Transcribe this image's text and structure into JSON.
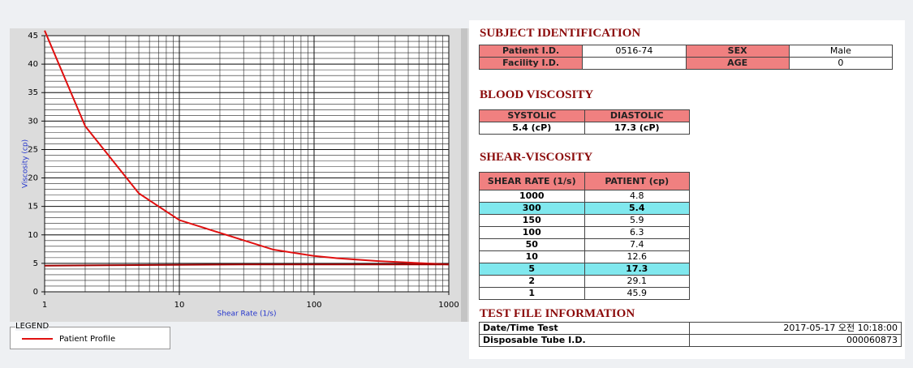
{
  "chart_data": {
    "type": "line",
    "x_label": "Shear Rate (1/s)",
    "y_label": "Viscosity (cp)",
    "xlim": [
      1,
      1000
    ],
    "xticks": [
      1,
      10,
      100,
      1000
    ],
    "xscale": "log",
    "ylim": [
      0,
      45
    ],
    "yticks": [
      0,
      5,
      10,
      15,
      20,
      25,
      30,
      35,
      40,
      45
    ],
    "grid": true,
    "legend_title": "LEGEND",
    "series": [
      {
        "name": "Patient Profile",
        "color": "#e01010",
        "x": [
          1,
          2,
          5,
          10,
          50,
          100,
          150,
          300,
          1000
        ],
        "values": [
          45.9,
          29.1,
          17.3,
          12.6,
          7.4,
          6.3,
          5.9,
          5.4,
          4.8
        ]
      },
      {
        "color": "#a00000",
        "x": [
          1,
          30,
          1000
        ],
        "values": [
          4.6,
          4.8,
          4.8
        ]
      }
    ]
  },
  "subject": {
    "title": "SUBJECT IDENTIFICATION",
    "rows": [
      [
        "Patient I.D.",
        "0516-74",
        "SEX",
        "Male"
      ],
      [
        "Facility I.D.",
        null,
        "AGE",
        "0"
      ]
    ]
  },
  "blood": {
    "title": "BLOOD VISCOSITY",
    "headers": [
      "SYSTOLIC",
      "DIASTOLIC"
    ],
    "values": [
      "5.4 (cP)",
      "17.3 (cP)"
    ]
  },
  "shear": {
    "title": "SHEAR-VISCOSITY",
    "headers": [
      "SHEAR RATE (1/s)",
      "PATIENT (cp)"
    ],
    "highlight_color": "#80e8ee",
    "rows": [
      {
        "rate": 1000,
        "patient": 4.8,
        "highlight": false
      },
      {
        "rate": 300,
        "patient": 5.4,
        "highlight": true
      },
      {
        "rate": 150,
        "patient": 5.9,
        "highlight": false
      },
      {
        "rate": 100,
        "patient": 6.3,
        "highlight": false
      },
      {
        "rate": 50,
        "patient": 7.4,
        "highlight": false
      },
      {
        "rate": 10,
        "patient": 12.6,
        "highlight": false
      },
      {
        "rate": 5,
        "patient": 17.3,
        "highlight": true
      },
      {
        "rate": 2,
        "patient": 29.1,
        "highlight": false
      },
      {
        "rate": 1,
        "patient": 45.9,
        "highlight": false
      }
    ]
  },
  "test_file": {
    "title": "TEST FILE INFORMATION",
    "rows": [
      [
        "Date/Time Test",
        "2017-05-17  오전 10:18:00"
      ],
      [
        "Disposable Tube I.D.",
        "000060873"
      ]
    ]
  }
}
